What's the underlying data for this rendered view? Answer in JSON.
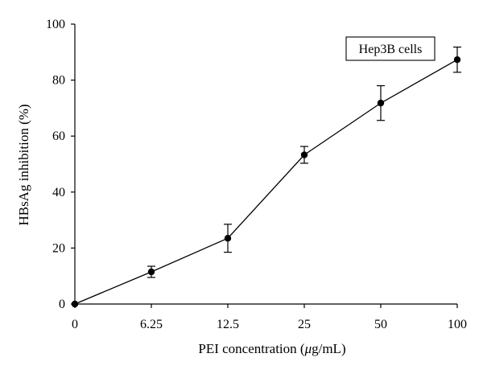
{
  "chart_data": {
    "type": "line",
    "categories": [
      "0",
      "6.25",
      "12.5",
      "25",
      "50",
      "100"
    ],
    "series": [
      {
        "name": "Hep3B cells",
        "values": [
          0,
          11.5,
          23.5,
          53.3,
          71.8,
          87.3
        ],
        "error": [
          0.5,
          2.0,
          5.0,
          3.0,
          6.2,
          4.5
        ]
      }
    ],
    "title": "",
    "xlabel_prefix": "PEI concentration (",
    "xlabel_unit_italic": "μ",
    "xlabel_suffix": "g/mL)",
    "ylabel": "HBsAg inhibition (%)",
    "ylim": [
      0,
      100
    ],
    "yticks": [
      "0",
      "20",
      "40",
      "60",
      "80",
      "100"
    ],
    "legend_text": "Hep3B cells",
    "legend_position": "top-right",
    "grid": false,
    "colors": {
      "line": "#000000",
      "marker": "#000000",
      "axis": "#000000"
    }
  }
}
